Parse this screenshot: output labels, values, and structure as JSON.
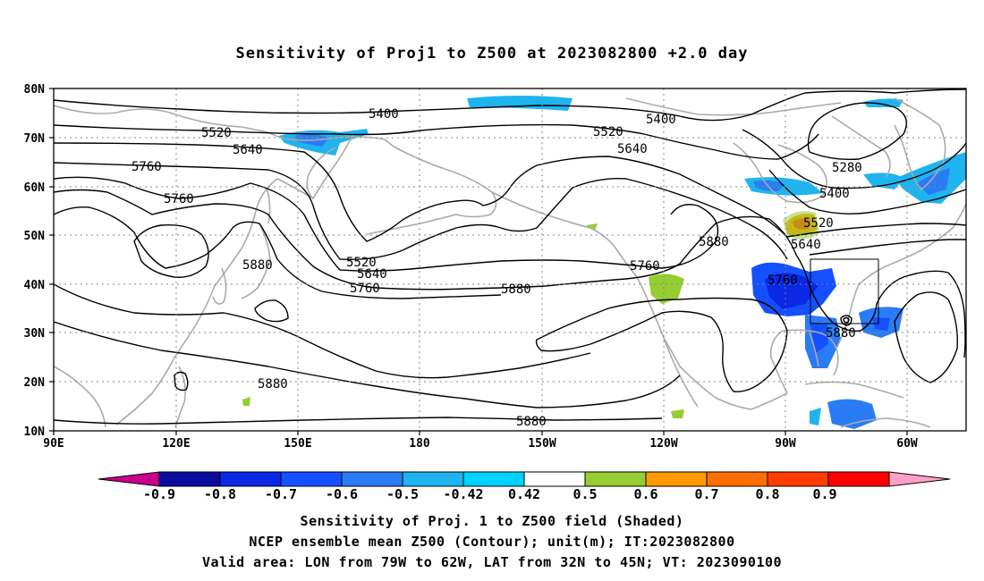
{
  "title": "Sensitivity of Proj1 to Z500 at 2023082800 +2.0 day",
  "lat_labels": [
    "80N",
    "70N",
    "60N",
    "50N",
    "40N",
    "30N",
    "20N",
    "10N"
  ],
  "lon_labels": [
    "90E",
    "120E",
    "150E",
    "180",
    "150W",
    "120W",
    "90W",
    "60W"
  ],
  "contour_labels": [
    "5400",
    "5400",
    "5520",
    "5520",
    "5640",
    "5640",
    "5760",
    "5760",
    "5280",
    "5400",
    "5520",
    "5640",
    "5880",
    "5520",
    "5640",
    "5760",
    "5760",
    "5880",
    "5880",
    "5760",
    "5880",
    "5880",
    "5880"
  ],
  "colorbar": {
    "labels": [
      "-0.9",
      "-0.8",
      "-0.7",
      "-0.6",
      "-0.5",
      "-0.42",
      "0.42",
      "0.5",
      "0.6",
      "0.7",
      "0.8",
      "0.9"
    ],
    "colors": [
      "#c8008c",
      "#0a0aa0",
      "#0a28e6",
      "#1450ff",
      "#2a7cf6",
      "#1eb4f0",
      "#00d2ff",
      "#ffffff",
      "#96cd32",
      "#ff9b00",
      "#ff6e00",
      "#ff3c00",
      "#ff0000",
      "#ffa0c8"
    ]
  },
  "colors": {
    "contour": "#000000",
    "coastline": "#aaaaaa",
    "grid": "#888888"
  },
  "captions": [
    "Sensitivity of Proj. 1 to Z500 field (Shaded)",
    "NCEP ensemble mean Z500 (Contour); unit(m); IT:2023082800",
    "Valid area: LON from 79W to 62W, LAT from 32N to 45N; VT: 2023090100"
  ]
}
